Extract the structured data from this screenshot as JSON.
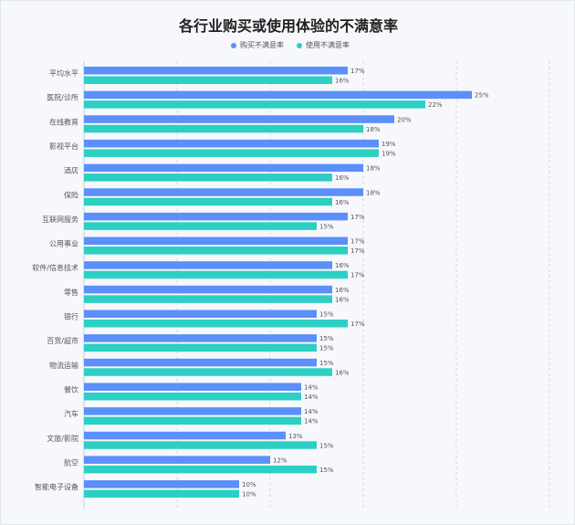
{
  "chart_data": {
    "type": "bar",
    "orientation": "horizontal",
    "title": "各行业购买或使用体验的不满意率",
    "legend_position": "top",
    "grid": true,
    "xlim": [
      0,
      30
    ],
    "categories": [
      "平均水平",
      "医院/诊所",
      "在线教育",
      "影视平台",
      "酒店",
      "保险",
      "互联网服务",
      "公用事业",
      "软件/信息技术",
      "零售",
      "银行",
      "百货/超市",
      "物流运输",
      "餐饮",
      "汽车",
      "文旅/影院",
      "航空",
      "智能电子设备"
    ],
    "series": [
      {
        "name": "购买不满意率",
        "color": "#5b8ff9",
        "values": [
          17,
          25,
          20,
          19,
          18,
          18,
          17,
          17,
          16,
          16,
          15,
          15,
          15,
          14,
          14,
          13,
          12,
          10
        ]
      },
      {
        "name": "使用不满意率",
        "color": "#2ccfc4",
        "values": [
          16,
          22,
          18,
          19,
          16,
          16,
          15,
          17,
          17,
          16,
          17,
          15,
          16,
          14,
          14,
          15,
          15,
          10
        ]
      }
    ],
    "value_suffix": "%"
  }
}
